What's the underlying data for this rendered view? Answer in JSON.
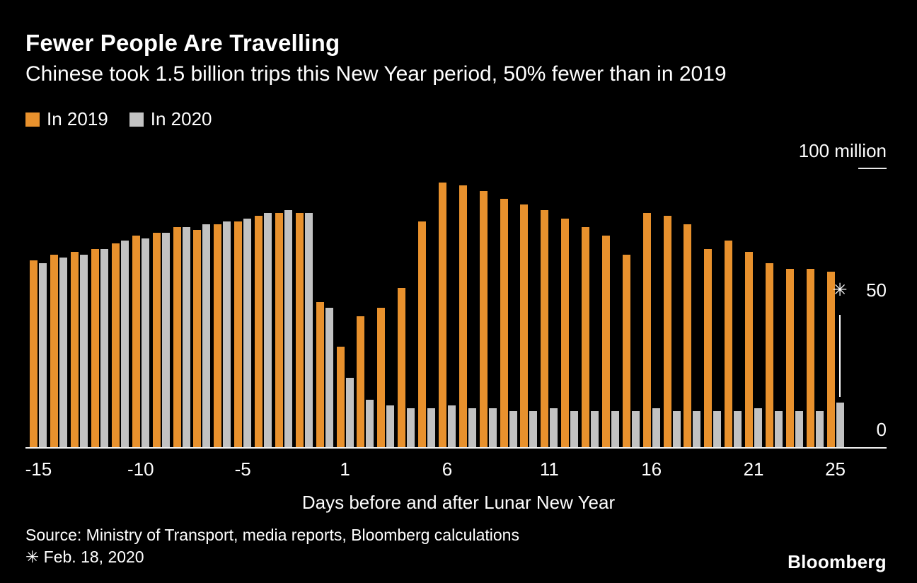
{
  "header": {
    "title": "Fewer People Are Travelling",
    "subtitle": "Chinese took 1.5 billion trips this New Year period, 50% fewer than in 2019"
  },
  "chart_data": {
    "type": "bar",
    "title": "Fewer People Are Travelling",
    "subtitle": "Chinese took 1.5 billion trips this New Year period, 50% fewer than in 2019",
    "xlabel": "Days before and after Lunar New Year",
    "ylabel": "100 million",
    "ylim": [
      0,
      100
    ],
    "grid": false,
    "legend_position": "top-left",
    "y_ticks": [
      {
        "label": "100 million",
        "value": 100,
        "dash": true
      },
      {
        "label": "50",
        "value": 50,
        "dash": false
      },
      {
        "label": "0",
        "value": 0,
        "dash": false
      }
    ],
    "x_tick_labels": [
      -15,
      -10,
      -5,
      1,
      6,
      11,
      16,
      21,
      25
    ],
    "days": [
      -15,
      -14,
      -13,
      -12,
      -11,
      -10,
      -9,
      -8,
      -7,
      -6,
      -5,
      -4,
      -3,
      -2,
      -1,
      1,
      2,
      3,
      4,
      5,
      6,
      7,
      8,
      9,
      10,
      11,
      12,
      13,
      14,
      15,
      16,
      17,
      18,
      19,
      20,
      21,
      22,
      23,
      24,
      25
    ],
    "series": [
      {
        "name": "In 2019",
        "color": "#E8912D",
        "values": [
          67,
          69,
          70,
          71,
          73,
          76,
          77,
          79,
          78,
          80,
          81,
          83,
          84,
          84,
          52,
          36,
          47,
          50,
          57,
          81,
          95,
          94,
          92,
          89,
          87,
          85,
          82,
          79,
          76,
          69,
          84,
          83,
          80,
          71,
          74,
          70,
          66,
          64,
          64,
          63
        ]
      },
      {
        "name": "In 2020",
        "color": "#C2C2C2",
        "values": [
          66,
          68,
          69,
          71,
          74,
          75,
          77,
          79,
          80,
          81,
          82,
          84,
          85,
          84,
          50,
          25,
          17,
          15,
          14,
          14,
          15,
          14,
          14,
          13,
          13,
          14,
          13,
          13,
          13,
          13,
          14,
          13,
          13,
          13,
          13,
          14,
          13,
          13,
          13,
          16
        ]
      }
    ],
    "annotation": {
      "symbol": "✳",
      "day": 25,
      "series": "In 2020"
    }
  },
  "footer": {
    "source": "Source: Ministry of Transport, media reports, Bloomberg calculations",
    "footnote": "✳ Feb. 18, 2020",
    "brand": "Bloomberg"
  }
}
